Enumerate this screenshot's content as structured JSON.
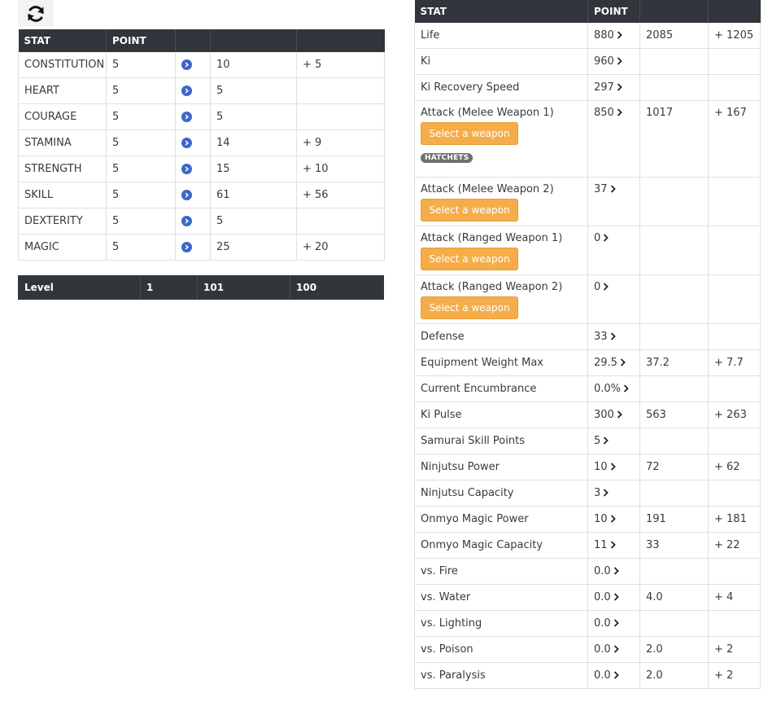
{
  "stats": {
    "headers": [
      "STAT",
      "POINT",
      "",
      "",
      ""
    ],
    "rows": [
      {
        "name": "CONSTITUTION",
        "point": "5",
        "value": "10",
        "gain": "+ 5"
      },
      {
        "name": "HEART",
        "point": "5",
        "value": "5",
        "gain": ""
      },
      {
        "name": "COURAGE",
        "point": "5",
        "value": "5",
        "gain": ""
      },
      {
        "name": "STAMINA",
        "point": "5",
        "value": "14",
        "gain": "+ 9"
      },
      {
        "name": "STRENGTH",
        "point": "5",
        "value": "15",
        "gain": "+ 10"
      },
      {
        "name": "SKILL",
        "point": "5",
        "value": "61",
        "gain": "+ 56"
      },
      {
        "name": "DEXTERITY",
        "point": "5",
        "value": "5",
        "gain": ""
      },
      {
        "name": "MAGIC",
        "point": "5",
        "value": "25",
        "gain": "+ 20"
      }
    ]
  },
  "level": {
    "label": "Level",
    "current": "1",
    "target": "101",
    "diff": "100"
  },
  "attributes": {
    "headers": [
      "STAT",
      "POINT",
      "",
      ""
    ],
    "weapon_button_label": "Select a weapon",
    "badge_label": "HATCHETS",
    "rows": [
      {
        "name": "Life",
        "point": "880",
        "value": "2085",
        "gain": "+ 1205"
      },
      {
        "name": "Ki",
        "point": "960",
        "value": "",
        "gain": ""
      },
      {
        "name": "Ki Recovery Speed",
        "point": "297",
        "value": "",
        "gain": ""
      },
      {
        "name": "Attack (Melee Weapon 1)",
        "point": "850",
        "value": "1017",
        "gain": "+ 167"
      },
      {
        "name": "Attack (Melee Weapon 2)",
        "point": "37",
        "value": "",
        "gain": ""
      },
      {
        "name": "Attack (Ranged Weapon 1)",
        "point": "0",
        "value": "",
        "gain": ""
      },
      {
        "name": "Attack (Ranged Weapon 2)",
        "point": "0",
        "value": "",
        "gain": ""
      },
      {
        "name": "Defense",
        "point": "33",
        "value": "",
        "gain": ""
      },
      {
        "name": "Equipment Weight Max",
        "point": "29.5",
        "value": "37.2",
        "gain": "+ 7.7"
      },
      {
        "name": "Current Encumbrance",
        "point": "0.0%",
        "value": "",
        "gain": ""
      },
      {
        "name": "Ki Pulse",
        "point": "300",
        "value": "563",
        "gain": "+ 263"
      },
      {
        "name": "Samurai Skill Points",
        "point": "5",
        "value": "",
        "gain": ""
      },
      {
        "name": "Ninjutsu Power",
        "point": "10",
        "value": "72",
        "gain": "+ 62"
      },
      {
        "name": "Ninjutsu Capacity",
        "point": "3",
        "value": "",
        "gain": ""
      },
      {
        "name": "Onmyo Magic Power",
        "point": "10",
        "value": "191",
        "gain": "+ 181"
      },
      {
        "name": "Onmyo Magic Capacity",
        "point": "11",
        "value": "33",
        "gain": "+ 22"
      },
      {
        "name": "vs. Fire",
        "point": "0.0",
        "value": "",
        "gain": ""
      },
      {
        "name": "vs. Water",
        "point": "0.0",
        "value": "4.0",
        "gain": "+ 4"
      },
      {
        "name": "vs. Lighting",
        "point": "0.0",
        "value": "",
        "gain": ""
      },
      {
        "name": "vs. Poison",
        "point": "0.0",
        "value": "2.0",
        "gain": "+ 2"
      },
      {
        "name": "vs. Paralysis",
        "point": "0.0",
        "value": "2.0",
        "gain": "+ 2"
      }
    ]
  },
  "icons": {
    "refresh": "refresh-icon",
    "stat_arrow": "chevron-right-circle-icon",
    "attr_chevron": "chevron-right-icon"
  },
  "colors": {
    "header_bg": "#32363c",
    "arrow_blue": "#3b66c9",
    "weapon_orange": "#f5ad4a",
    "badge_gray": "#707070"
  }
}
